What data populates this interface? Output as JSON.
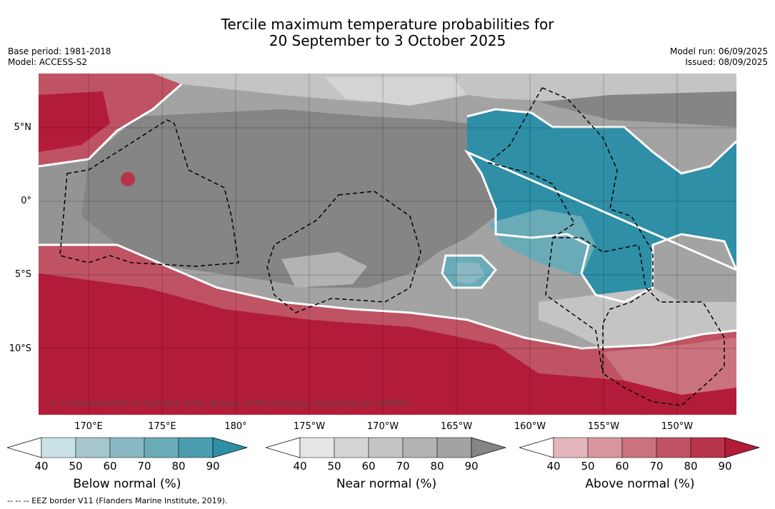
{
  "title": {
    "line1": "Tercile maximum temperature probabilities for",
    "line2": "20 September to 3 October 2025"
  },
  "left_info": {
    "base_period": "Base period: 1981-2018",
    "model": "Model: ACCESS-S2"
  },
  "right_info": {
    "model_run": "Model run: 06/09/2025",
    "issued": "Issued: 08/09/2025"
  },
  "map": {
    "lat_labels": [
      "5°N",
      "0°",
      "5°S",
      "10°S"
    ],
    "lon_labels": [
      "170°E",
      "175°E",
      "180°",
      "175°W",
      "170°W",
      "165°W",
      "160°W",
      "155°W",
      "150°W"
    ],
    "copyright": "© Commonwealth of Australia 2025, Bureau of Meteorology, supported by COSPPac",
    "colors": {
      "near_normal_dark": "#858585",
      "near_normal_mid": "#a3a3a3",
      "near_normal_light": "#c8c8c8",
      "below_normal_strong": "#2e8fa6",
      "above_normal_strong": "#b31c38"
    }
  },
  "colorbars": [
    {
      "title": "Below normal (%)",
      "ticks": [
        "40",
        "50",
        "60",
        "70",
        "80",
        "90"
      ],
      "colors": [
        "#ffffff",
        "#c9e1e7",
        "#a5c6cc",
        "#89b7c2",
        "#6aabb8",
        "#4a9eb0",
        "#2e8fa6"
      ]
    },
    {
      "title": "Near normal (%)",
      "ticks": [
        "40",
        "50",
        "60",
        "70",
        "80",
        "90"
      ],
      "colors": [
        "#ffffff",
        "#e6e6e6",
        "#d4d4d4",
        "#c4c4c4",
        "#b3b3b3",
        "#a3a3a3",
        "#858585"
      ]
    },
    {
      "title": "Above normal (%)",
      "ticks": [
        "40",
        "50",
        "60",
        "70",
        "80",
        "90"
      ],
      "colors": [
        "#ffffff",
        "#e4b7bd",
        "#d8959d",
        "#ca737f",
        "#bf5364",
        "#b7344b",
        "#b31c38"
      ]
    }
  ],
  "footnote": "--  --  -- EEZ border V11 (Flanders Marine Institute, 2019)."
}
